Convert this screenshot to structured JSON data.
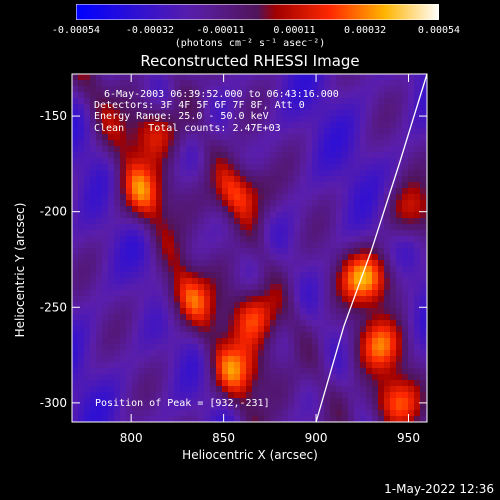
{
  "colorbar": {
    "ticks": [
      "-0.00054",
      "-0.00032",
      "-0.00011",
      "0.00011",
      "0.00032",
      "0.00054"
    ],
    "tick_values": [
      -0.00054,
      -0.00032,
      -0.00011,
      0.00011,
      0.00032,
      0.00054
    ],
    "range": [
      -0.00054,
      0.00054
    ],
    "units_text": "(photons cm⁻² s⁻¹ asec⁻²)"
  },
  "info": {
    "line1": "6-May-2003 06:39:52.000 to 06:43:16.000",
    "line2": "Detectors: 3F 4F 5F 6F 7F 8F, Att 0",
    "line3": "Energy Range: 25.0 - 50.0 keV",
    "line4": "Clean    Total counts: 2.47E+03",
    "peak": "Position of Peak = [932,-231]"
  },
  "footer": {
    "timestamp": "1-May-2022 12:36"
  },
  "colors": {
    "background": "#000000",
    "axes": "#ffffff",
    "limb": "#ffffff"
  },
  "chart_data": {
    "type": "heatmap",
    "title": "Reconstructed RHESSI Image",
    "xlabel": "Heliocentric X (arcsec)",
    "ylabel": "Heliocentric Y (arcsec)",
    "xlim": [
      768,
      960
    ],
    "ylim": [
      -310,
      -128
    ],
    "xticks": [
      800,
      850,
      900,
      950
    ],
    "yticks": [
      -150,
      -200,
      -250,
      -300
    ],
    "colormap": "blue-purple-red-yellow-white",
    "peak_position": [
      932,
      -231
    ],
    "limb_curve": [
      [
        900,
        -310
      ],
      [
        915,
        -260
      ],
      [
        930,
        -220
      ],
      [
        945,
        -175
      ],
      [
        960,
        -128
      ]
    ],
    "bright_sources": [
      {
        "x": 928,
        "y": -235,
        "intensity": 0.00054
      },
      {
        "x": 935,
        "y": -270,
        "intensity": 0.0004
      },
      {
        "x": 942,
        "y": -300,
        "intensity": 0.0004
      },
      {
        "x": 858,
        "y": -190,
        "intensity": 0.00038
      },
      {
        "x": 866,
        "y": -255,
        "intensity": 0.00035
      },
      {
        "x": 858,
        "y": -283,
        "intensity": 0.00035
      },
      {
        "x": 806,
        "y": -190,
        "intensity": 0.0003
      },
      {
        "x": 830,
        "y": -245,
        "intensity": 0.0003
      },
      {
        "x": 812,
        "y": -158,
        "intensity": 0.0003
      },
      {
        "x": 952,
        "y": -200,
        "intensity": 0.0003
      }
    ]
  }
}
